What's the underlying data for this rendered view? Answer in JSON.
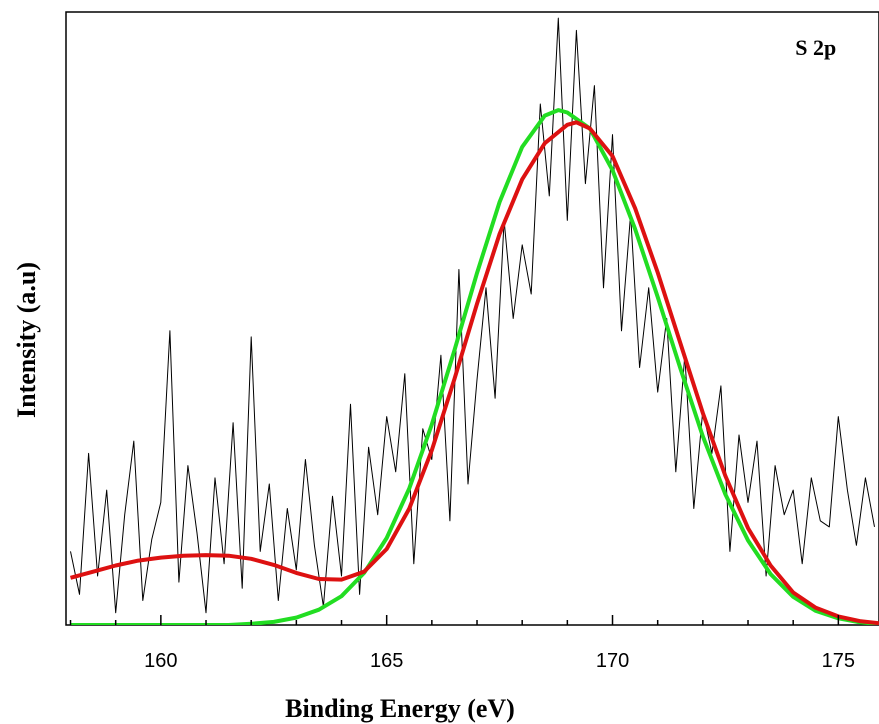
{
  "chart_data": {
    "type": "line",
    "title": "",
    "xlabel": "Binding Energy (eV)",
    "ylabel": "Intensity (a.u)",
    "xlim": [
      157.9,
      175.9
    ],
    "ylim": [
      0,
      1
    ],
    "xticks": [
      160,
      165,
      170,
      175
    ],
    "xtick_labels": [
      "160",
      "165",
      "170",
      "175"
    ],
    "yticks_shown": false,
    "grid": false,
    "legend": "none",
    "annotations": [
      {
        "text": "S 2p",
        "x": 174.5,
        "y": 0.93
      }
    ],
    "series": [
      {
        "kind": "raw-spectrum",
        "color": "#000000",
        "x": [
          158.0,
          158.2,
          158.4,
          158.6,
          158.8,
          159.0,
          159.2,
          159.4,
          159.6,
          159.8,
          160.0,
          160.2,
          160.4,
          160.6,
          160.8,
          161.0,
          161.2,
          161.4,
          161.6,
          161.8,
          162.0,
          162.2,
          162.4,
          162.6,
          162.8,
          163.0,
          163.2,
          163.4,
          163.6,
          163.8,
          164.0,
          164.2,
          164.4,
          164.6,
          164.8,
          165.0,
          165.2,
          165.4,
          165.6,
          165.8,
          166.0,
          166.2,
          166.4,
          166.6,
          166.8,
          167.0,
          167.2,
          167.4,
          167.6,
          167.8,
          168.0,
          168.2,
          168.4,
          168.6,
          168.8,
          169.0,
          169.2,
          169.4,
          169.6,
          169.8,
          170.0,
          170.2,
          170.4,
          170.6,
          170.8,
          171.0,
          171.2,
          171.4,
          171.6,
          171.8,
          172.0,
          172.2,
          172.4,
          172.6,
          172.8,
          173.0,
          173.2,
          173.4,
          173.6,
          173.8,
          174.0,
          174.2,
          174.4,
          174.6,
          174.8,
          175.0,
          175.2,
          175.4,
          175.6,
          175.8
        ],
        "y": [
          0.12,
          0.05,
          0.28,
          0.08,
          0.22,
          0.02,
          0.18,
          0.3,
          0.04,
          0.14,
          0.2,
          0.48,
          0.07,
          0.26,
          0.15,
          0.02,
          0.24,
          0.1,
          0.33,
          0.06,
          0.47,
          0.12,
          0.23,
          0.04,
          0.19,
          0.09,
          0.27,
          0.13,
          0.03,
          0.21,
          0.08,
          0.36,
          0.05,
          0.29,
          0.18,
          0.34,
          0.25,
          0.41,
          0.1,
          0.32,
          0.27,
          0.44,
          0.17,
          0.58,
          0.23,
          0.4,
          0.55,
          0.37,
          0.66,
          0.5,
          0.62,
          0.54,
          0.85,
          0.7,
          0.99,
          0.66,
          0.97,
          0.72,
          0.88,
          0.55,
          0.8,
          0.48,
          0.67,
          0.42,
          0.55,
          0.38,
          0.5,
          0.25,
          0.44,
          0.19,
          0.35,
          0.28,
          0.39,
          0.12,
          0.31,
          0.2,
          0.3,
          0.08,
          0.26,
          0.18,
          0.22,
          0.1,
          0.24,
          0.17,
          0.16,
          0.34,
          0.22,
          0.13,
          0.24,
          0.16
        ]
      },
      {
        "kind": "envelope-green",
        "color": "#22dd22",
        "x": [
          158.0,
          158.5,
          159.0,
          159.5,
          160.0,
          160.5,
          161.0,
          161.5,
          162.0,
          162.5,
          163.0,
          163.5,
          164.0,
          164.5,
          165.0,
          165.5,
          166.0,
          166.5,
          167.0,
          167.5,
          168.0,
          168.5,
          168.8,
          169.0,
          169.5,
          170.0,
          170.5,
          171.0,
          171.5,
          172.0,
          172.5,
          173.0,
          173.5,
          174.0,
          174.5,
          175.0,
          175.5,
          175.9
        ],
        "y": [
          0,
          0,
          0,
          0,
          0,
          0,
          0,
          0,
          0.002,
          0.005,
          0.012,
          0.025,
          0.047,
          0.085,
          0.142,
          0.223,
          0.327,
          0.448,
          0.574,
          0.69,
          0.78,
          0.831,
          0.84,
          0.836,
          0.81,
          0.742,
          0.646,
          0.535,
          0.419,
          0.308,
          0.213,
          0.138,
          0.083,
          0.046,
          0.023,
          0.011,
          0.004,
          0.002
        ]
      },
      {
        "kind": "fit-red",
        "color": "#dd1111",
        "x": [
          158.0,
          158.5,
          159.0,
          159.5,
          160.0,
          160.5,
          161.0,
          161.5,
          162.0,
          162.5,
          163.0,
          163.5,
          164.0,
          164.5,
          165.0,
          165.5,
          166.0,
          166.5,
          167.0,
          167.5,
          168.0,
          168.5,
          169.0,
          169.2,
          169.5,
          170.0,
          170.5,
          171.0,
          171.5,
          172.0,
          172.5,
          173.0,
          173.5,
          174.0,
          174.5,
          175.0,
          175.5,
          175.9
        ],
        "y": [
          0.077,
          0.087,
          0.097,
          0.105,
          0.11,
          0.113,
          0.114,
          0.113,
          0.108,
          0.098,
          0.085,
          0.075,
          0.074,
          0.087,
          0.124,
          0.19,
          0.285,
          0.401,
          0.524,
          0.638,
          0.727,
          0.786,
          0.816,
          0.82,
          0.81,
          0.765,
          0.68,
          0.575,
          0.46,
          0.346,
          0.243,
          0.158,
          0.097,
          0.053,
          0.028,
          0.014,
          0.006,
          0.003
        ]
      }
    ]
  }
}
